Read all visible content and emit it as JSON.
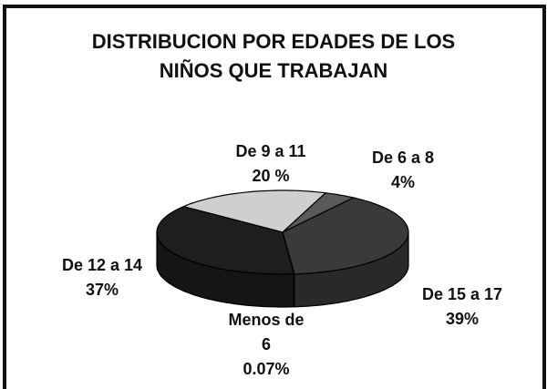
{
  "chart_data": {
    "type": "pie",
    "title": "DISTRIBUCION POR EDADES DE LOS NIÑOS QUE TRABAJAN",
    "categories": [
      "De 9 a 11",
      "De 6 a 8",
      "De 15 a 17",
      "Menos de 6",
      "De 12 a 14"
    ],
    "values": [
      20,
      4,
      39,
      0.07,
      37
    ],
    "value_labels": [
      "20 %",
      "4%",
      "39%",
      "0.07%",
      "37%"
    ],
    "colors": [
      "#cfcfcf",
      "#5a5a5a",
      "#3a3a3a",
      "#8a8a8a",
      "#1e1e1e"
    ]
  }
}
